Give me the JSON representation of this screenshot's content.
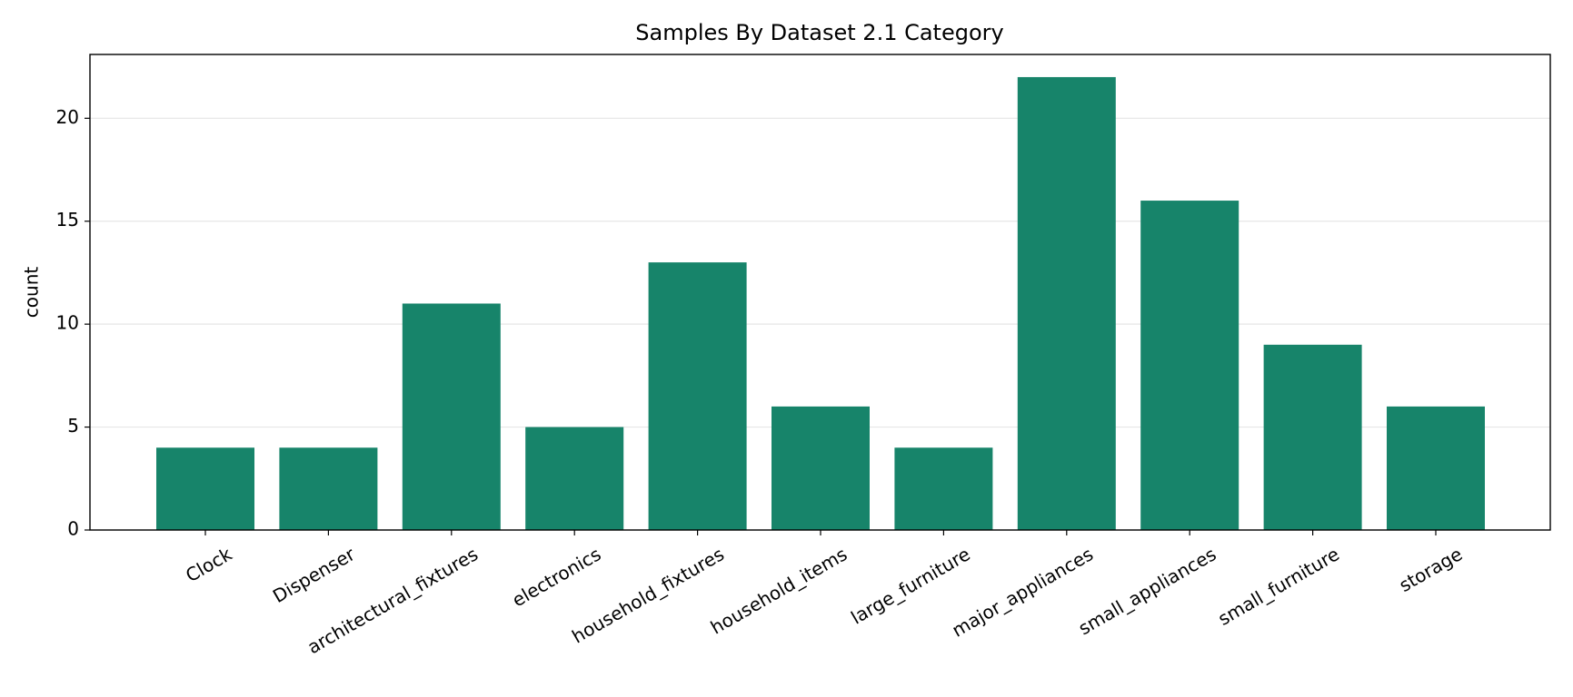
{
  "chart_data": {
    "type": "bar",
    "title": "Samples By Dataset 2.1 Category",
    "y_label": "count",
    "categories": [
      "Clock",
      "Dispenser",
      "architectural_fixtures",
      "electronics",
      "household_fixtures",
      "household_items",
      "large_furniture",
      "major_appliances",
      "small_appliances",
      "small_furniture",
      "storage"
    ],
    "values": [
      4,
      4,
      11,
      5,
      13,
      6,
      4,
      22,
      16,
      9,
      6
    ],
    "color": "#17846a",
    "ylim": [
      0,
      23.1
    ],
    "yticks": [
      0,
      5,
      10,
      15,
      20
    ],
    "grid": true
  }
}
